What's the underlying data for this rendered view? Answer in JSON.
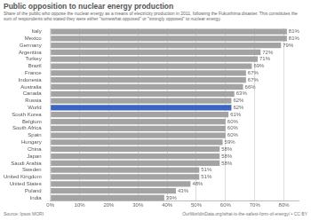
{
  "chart_data": {
    "type": "bar",
    "orientation": "horizontal",
    "title": "Public opposition to nuclear energy production",
    "subtitle": "Share of the public who oppose the nuclear energy as a means of electricity production in 2011, following the Fukushima disaster. This constitutes the sum of respondents who stated they were either \"somewhat opposed\" or \"strongly opposed\" to nuclear energy.",
    "source": "Source: Ipsos MORI",
    "footer": "OurWorldinData.org/what-is-the-safest-form-of-energy/ • CC BY",
    "categories": [
      "Italy",
      "Mexico",
      "Germany",
      "Argentina",
      "Turkey",
      "Brazil",
      "France",
      "Indonesia",
      "Australia",
      "Canada",
      "Russia",
      "World",
      "South Korea",
      "Belgium",
      "South Africa",
      "Spain",
      "Hungary",
      "China",
      "Japan",
      "Saudi Arabia",
      "Sweden",
      "United Kingdom",
      "United States",
      "Poland",
      "India"
    ],
    "values": [
      81,
      81,
      79,
      72,
      71,
      69,
      67,
      67,
      66,
      63,
      62,
      62,
      61,
      60,
      60,
      60,
      59,
      58,
      58,
      58,
      51,
      51,
      48,
      43,
      39
    ],
    "value_labels": [
      "81%",
      "81%",
      "79%",
      "72%",
      "71%",
      "69%",
      "67%",
      "67%",
      "66%",
      "63%",
      "62%",
      "62%",
      "61%",
      "60%",
      "60%",
      "60%",
      "59%",
      "58%",
      "58%",
      "58%",
      "51%",
      "51%",
      "48%",
      "43%",
      "39%"
    ],
    "colors": [
      "#a3a3a3",
      "#a3a3a3",
      "#a3a3a3",
      "#a3a3a3",
      "#a3a3a3",
      "#a3a3a3",
      "#a3a3a3",
      "#a3a3a3",
      "#a3a3a3",
      "#a3a3a3",
      "#a3a3a3",
      "#3c64c2",
      "#a3a3a3",
      "#a3a3a3",
      "#a3a3a3",
      "#a3a3a3",
      "#a3a3a3",
      "#a3a3a3",
      "#a3a3a3",
      "#a3a3a3",
      "#a3a3a3",
      "#a3a3a3",
      "#a3a3a3",
      "#a3a3a3",
      "#a3a3a3"
    ],
    "data_labels": true,
    "grid": true,
    "xlim": [
      0,
      85
    ],
    "xticks": [
      {
        "value": 0,
        "label": "0%"
      },
      {
        "value": 10,
        "label": "10%"
      },
      {
        "value": 20,
        "label": "20%"
      },
      {
        "value": 30,
        "label": "30%"
      },
      {
        "value": 40,
        "label": "40%"
      },
      {
        "value": 50,
        "label": "50%"
      },
      {
        "value": 60,
        "label": "60%"
      },
      {
        "value": 70,
        "label": "70%"
      },
      {
        "value": 80,
        "label": "80%"
      }
    ]
  }
}
